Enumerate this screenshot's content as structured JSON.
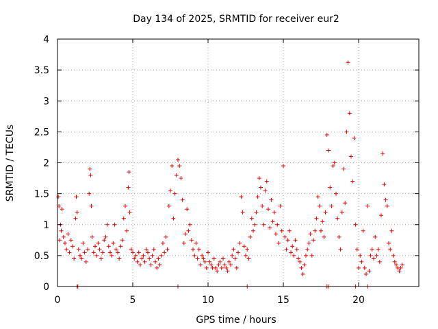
{
  "chart_data": {
    "type": "scatter",
    "title": "Day 134 of 2025, SRMTID for receiver eur2",
    "xlabel": "GPS time / hours",
    "ylabel": "SRMTID / TECUs",
    "xlim": [
      0,
      24
    ],
    "ylim": [
      0,
      4
    ],
    "xticks": [
      0,
      5,
      10,
      15,
      20
    ],
    "xtick_labels": [
      "0",
      "5",
      "10",
      "15",
      "20"
    ],
    "yticks": [
      0,
      0.5,
      1,
      1.5,
      2,
      2.5,
      3,
      3.5,
      4
    ],
    "ytick_labels": [
      "0",
      "0.5",
      "1",
      "1.5",
      "2",
      "2.5",
      "3",
      "3.5",
      "4"
    ],
    "grid": true,
    "marker": "+",
    "color": "#e00000",
    "series": [
      {
        "name": "SRMTID",
        "x": [
          0.05,
          0.1,
          0.15,
          0.2,
          0.25,
          0.3,
          0.4,
          0.5,
          0.6,
          0.7,
          0.8,
          0.9,
          1.0,
          1.1,
          1.2,
          1.25,
          1.3,
          1.4,
          1.5,
          1.6,
          1.7,
          1.8,
          1.9,
          2.0,
          2.1,
          2.15,
          2.2,
          2.25,
          2.3,
          2.4,
          2.5,
          2.6,
          2.7,
          2.8,
          2.9,
          3.0,
          3.1,
          3.2,
          3.3,
          3.4,
          3.5,
          3.6,
          3.7,
          3.8,
          3.9,
          4.0,
          4.1,
          4.2,
          4.3,
          4.4,
          4.5,
          4.6,
          4.7,
          4.75,
          4.8,
          4.9,
          5.0,
          5.1,
          5.2,
          5.3,
          5.4,
          5.5,
          5.6,
          5.7,
          5.8,
          5.9,
          6.0,
          6.1,
          6.2,
          6.3,
          6.4,
          6.5,
          6.6,
          6.7,
          6.8,
          6.9,
          7.0,
          7.1,
          7.2,
          7.3,
          7.4,
          7.5,
          7.6,
          7.7,
          7.8,
          7.9,
          8.0,
          8.1,
          8.2,
          8.3,
          8.4,
          8.5,
          8.6,
          8.7,
          8.8,
          8.9,
          9.0,
          9.1,
          9.2,
          9.3,
          9.4,
          9.5,
          9.6,
          9.7,
          9.8,
          9.9,
          10.0,
          10.1,
          10.2,
          10.3,
          10.4,
          10.5,
          10.6,
          10.7,
          10.8,
          10.9,
          11.0,
          11.1,
          11.2,
          11.3,
          11.4,
          11.5,
          11.6,
          11.7,
          11.8,
          11.9,
          12.0,
          12.1,
          12.2,
          12.3,
          12.4,
          12.5,
          12.6,
          12.7,
          12.8,
          12.9,
          13.0,
          13.1,
          13.2,
          13.3,
          13.4,
          13.5,
          13.6,
          13.7,
          13.8,
          13.9,
          14.0,
          14.1,
          14.2,
          14.3,
          14.4,
          14.5,
          14.6,
          14.7,
          14.8,
          14.9,
          15.0,
          15.1,
          15.2,
          15.3,
          15.4,
          15.5,
          15.6,
          15.7,
          15.8,
          15.9,
          16.0,
          16.1,
          16.2,
          16.3,
          16.4,
          16.5,
          16.6,
          16.7,
          16.8,
          16.9,
          17.0,
          17.1,
          17.2,
          17.3,
          17.4,
          17.5,
          17.6,
          17.7,
          17.8,
          17.9,
          18.0,
          18.1,
          18.2,
          18.3,
          18.4,
          18.5,
          18.6,
          18.7,
          18.8,
          18.9,
          19.0,
          19.1,
          19.2,
          19.3,
          19.4,
          19.5,
          19.6,
          19.7,
          19.8,
          19.9,
          20.0,
          20.1,
          20.2,
          20.3,
          20.4,
          20.5,
          20.6,
          20.7,
          20.8,
          20.9,
          21.0,
          21.1,
          21.2,
          21.3,
          21.4,
          21.5,
          21.6,
          21.7,
          21.8,
          21.9,
          22.0,
          22.1,
          22.2,
          22.3,
          22.4,
          22.5,
          22.6,
          22.7,
          22.8,
          22.9,
          1.3,
          1.35,
          8.0,
          12.6,
          17.9,
          18.0,
          19.8,
          20.6
        ],
        "y": [
          1.45,
          1.3,
          0.75,
          1.0,
          0.9,
          1.25,
          0.8,
          0.7,
          0.6,
          0.85,
          0.55,
          0.75,
          0.65,
          0.45,
          1.1,
          1.45,
          1.2,
          0.6,
          0.5,
          0.45,
          0.7,
          0.55,
          0.4,
          0.6,
          1.5,
          1.9,
          1.8,
          1.3,
          0.8,
          0.55,
          0.65,
          0.5,
          0.7,
          0.6,
          0.45,
          0.55,
          0.75,
          0.8,
          1.0,
          0.65,
          0.55,
          0.5,
          0.7,
          1.0,
          0.6,
          0.55,
          0.45,
          0.65,
          0.75,
          1.1,
          1.3,
          0.9,
          1.6,
          1.85,
          1.2,
          0.6,
          0.55,
          0.45,
          0.5,
          0.4,
          0.55,
          0.35,
          0.45,
          0.5,
          0.4,
          0.6,
          0.55,
          0.45,
          0.35,
          0.5,
          0.6,
          0.4,
          0.3,
          0.45,
          0.35,
          0.5,
          0.7,
          0.55,
          0.8,
          0.6,
          1.3,
          1.55,
          1.95,
          1.1,
          1.5,
          1.8,
          2.05,
          1.95,
          1.75,
          1.4,
          0.7,
          0.85,
          1.25,
          0.9,
          1.0,
          0.75,
          0.6,
          0.5,
          0.7,
          0.45,
          0.6,
          0.35,
          0.5,
          0.45,
          0.4,
          0.3,
          0.55,
          0.4,
          0.35,
          0.3,
          0.45,
          0.3,
          0.25,
          0.35,
          0.4,
          0.3,
          0.45,
          0.35,
          0.3,
          0.25,
          0.4,
          0.35,
          0.5,
          0.6,
          0.45,
          0.3,
          0.55,
          0.7,
          1.45,
          1.2,
          0.65,
          0.5,
          0.6,
          0.45,
          0.8,
          1.1,
          0.9,
          1.0,
          1.2,
          1.45,
          1.75,
          1.6,
          1.3,
          1.0,
          1.55,
          1.7,
          1.25,
          0.95,
          1.4,
          1.05,
          1.2,
          0.85,
          1.0,
          0.7,
          1.3,
          0.9,
          1.95,
          0.8,
          0.6,
          0.75,
          0.9,
          0.55,
          0.65,
          0.5,
          0.75,
          0.6,
          0.45,
          0.4,
          0.3,
          0.2,
          0.35,
          0.5,
          0.6,
          0.7,
          0.85,
          0.5,
          0.75,
          0.9,
          1.1,
          1.45,
          1.3,
          0.9,
          1.05,
          0.8,
          1.2,
          2.45,
          2.2,
          1.6,
          1.3,
          1.95,
          2.0,
          1.5,
          1.1,
          0.8,
          0.6,
          1.2,
          1.9,
          1.35,
          2.5,
          3.62,
          2.8,
          2.1,
          1.7,
          2.4,
          1.0,
          0.6,
          0.3,
          0.5,
          0.4,
          0.9,
          0.3,
          0.2,
          1.3,
          0.25,
          0.5,
          0.6,
          0.45,
          0.8,
          0.5,
          0.6,
          0.4,
          1.15,
          2.15,
          1.65,
          1.4,
          1.3,
          0.7,
          0.6,
          0.9,
          0.5,
          0.4,
          0.35,
          0.3,
          0.25,
          0.3,
          0.35,
          0.0,
          0.0,
          0.0,
          0.0,
          0.0,
          0.0,
          0.0,
          0.0
        ]
      }
    ]
  }
}
